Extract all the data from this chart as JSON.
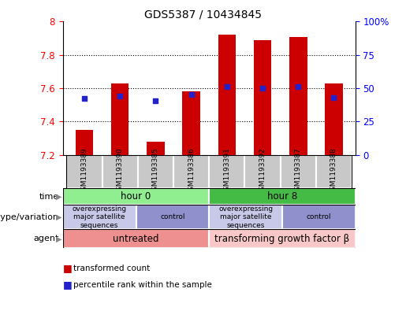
{
  "title": "GDS5387 / 10434845",
  "samples": [
    "GSM1193389",
    "GSM1193390",
    "GSM1193385",
    "GSM1193386",
    "GSM1193391",
    "GSM1193392",
    "GSM1193387",
    "GSM1193388"
  ],
  "bar_values": [
    7.35,
    7.63,
    7.28,
    7.58,
    7.92,
    7.89,
    7.91,
    7.63
  ],
  "bar_bottom": 7.2,
  "percentile_values": [
    7.54,
    7.555,
    7.525,
    7.563,
    7.608,
    7.6,
    7.608,
    7.543
  ],
  "ylim_left": [
    7.2,
    8.0
  ],
  "ylim_right": [
    0,
    100
  ],
  "yticks_left": [
    7.2,
    7.4,
    7.6,
    7.8,
    8.0
  ],
  "ytick_labels_left": [
    "7.2",
    "7.4",
    "7.6",
    "7.8",
    "8"
  ],
  "yticks_right": [
    0,
    25,
    50,
    75,
    100
  ],
  "ytick_labels_right": [
    "0",
    "25",
    "50",
    "75",
    "100%"
  ],
  "bar_color": "#cc0000",
  "dot_color": "#2222cc",
  "time_row": {
    "label": "time",
    "groups": [
      {
        "text": "hour 0",
        "start": 0,
        "end": 3,
        "color": "#90ee90"
      },
      {
        "text": "hour 8",
        "start": 4,
        "end": 7,
        "color": "#44bb44"
      }
    ]
  },
  "genotype_row": {
    "label": "genotype/variation",
    "groups": [
      {
        "text": "overexpressing\nmajor satellite\nsequences",
        "start": 0,
        "end": 1,
        "color": "#c8c8e8"
      },
      {
        "text": "control",
        "start": 2,
        "end": 3,
        "color": "#9090cc"
      },
      {
        "text": "overexpressing\nmajor satellite\nsequences",
        "start": 4,
        "end": 5,
        "color": "#c8c8e8"
      },
      {
        "text": "control",
        "start": 6,
        "end": 7,
        "color": "#9090cc"
      }
    ]
  },
  "agent_row": {
    "label": "agent",
    "groups": [
      {
        "text": "untreated",
        "start": 0,
        "end": 3,
        "color": "#ee9090"
      },
      {
        "text": "transforming growth factor β",
        "start": 4,
        "end": 7,
        "color": "#f8c8c8"
      }
    ]
  },
  "legend_items": [
    {
      "color": "#cc0000",
      "label": "transformed count"
    },
    {
      "color": "#2222cc",
      "label": "percentile rank within the sample"
    }
  ],
  "sample_box_color": "#c8c8c8",
  "arrow_color": "#888888",
  "label_fontsize": 8,
  "tick_fontsize": 8.5,
  "row_label_fontsize": 8,
  "row_text_fontsize": 7.5,
  "sample_fontsize": 6.5
}
